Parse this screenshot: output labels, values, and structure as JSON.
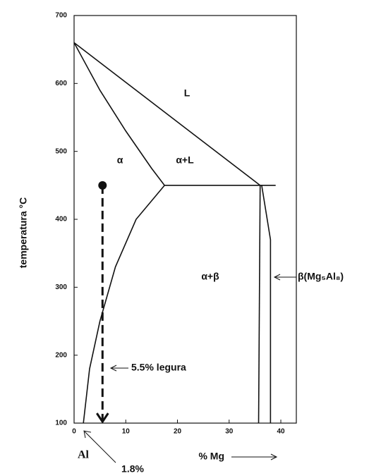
{
  "chart_data": {
    "type": "line",
    "xlabel": "% Mg",
    "ylabel": "temperatura °C",
    "xlim": [
      0,
      43
    ],
    "ylim": [
      100,
      700
    ],
    "xticks": [
      0,
      10,
      20,
      30,
      40
    ],
    "yticks": [
      100,
      200,
      300,
      400,
      500,
      600,
      700
    ],
    "color": "#111111",
    "series": [
      {
        "x": [
          0,
          36
        ],
        "values": [
          660,
          450
        ]
      },
      {
        "x": [
          0,
          5,
          10,
          15,
          17.5
        ],
        "values": [
          660,
          590,
          530,
          475,
          450
        ]
      },
      {
        "x": [
          17.5,
          12,
          8,
          5,
          3,
          1.8
        ],
        "values": [
          450,
          400,
          330,
          250,
          180,
          100
        ]
      },
      {
        "x": [
          17.5,
          39
        ],
        "values": [
          450,
          450
        ]
      },
      {
        "x": [
          36,
          35.7
        ],
        "values": [
          450,
          100
        ]
      },
      {
        "x": [
          36.3,
          38,
          38
        ],
        "values": [
          450,
          370,
          100
        ]
      }
    ],
    "alloy": {
      "x": 5.5,
      "y_start": 450,
      "y_end": 100
    },
    "annotations": [
      "L",
      "α",
      "α+L",
      "α+β",
      "β(Mg₅Al₈)",
      "5.5% legura",
      "Al",
      "1.8%"
    ]
  }
}
